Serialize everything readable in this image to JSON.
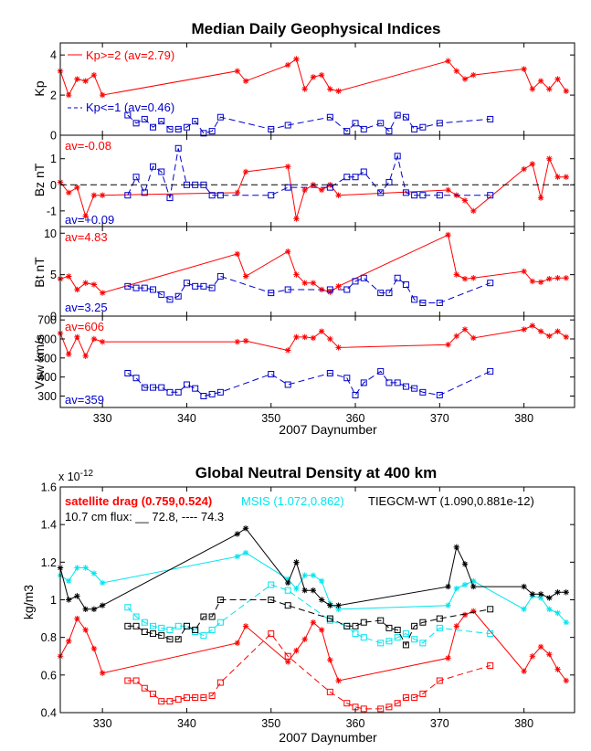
{
  "colors": {
    "red": "#ff0000",
    "blue": "#0000cc",
    "cyan": "#00e5ee",
    "black": "#000000"
  },
  "chart_data": [
    {
      "type": "line",
      "title": "Median Daily Geophysical Indices",
      "xlabel": "2007 Daynumber",
      "xlim": [
        325,
        386
      ],
      "x_ticks": [
        "330",
        "340",
        "350",
        "360",
        "370",
        "380"
      ],
      "panels": [
        {
          "ylabel": "Kp",
          "ylim": [
            0,
            4.6
          ],
          "y_ticks": [
            "0",
            "2",
            "4"
          ],
          "series": [
            {
              "name": "Kp>=2 (av=2.79)",
              "legend": "Kp>=2 (av=2.79)",
              "color": "#ff0000",
              "marker": "star",
              "style": "solid",
              "x": [
                325,
                326,
                327,
                328,
                329,
                330,
                346,
                347,
                352,
                353,
                354,
                355,
                356,
                357,
                358,
                371,
                372,
                373,
                374,
                380,
                381,
                382,
                383,
                384,
                385
              ],
              "y": [
                3.2,
                2.0,
                2.8,
                2.7,
                3.0,
                2.0,
                3.2,
                2.7,
                3.5,
                3.8,
                2.3,
                2.9,
                3.0,
                2.3,
                2.2,
                3.7,
                3.2,
                2.8,
                3.0,
                3.3,
                2.3,
                2.7,
                2.3,
                2.8,
                2.2
              ]
            },
            {
              "name": "Kp<=1 (av=0.46)",
              "legend": "Kp<=1 (av=0.46)",
              "color": "#0000cc",
              "marker": "square",
              "style": "dashed",
              "x": [
                333,
                334,
                335,
                336,
                337,
                338,
                339,
                340,
                341,
                342,
                343,
                344,
                350,
                352,
                357,
                359,
                360,
                361,
                363,
                364,
                365,
                366,
                367,
                368,
                370,
                376
              ],
              "y": [
                1.0,
                0.6,
                0.8,
                0.4,
                0.7,
                0.3,
                0.3,
                0.4,
                0.7,
                0.1,
                0.2,
                0.9,
                0.3,
                0.5,
                0.9,
                0.2,
                0.6,
                0.3,
                0.6,
                0.2,
                1.0,
                0.9,
                0.3,
                0.4,
                0.6,
                0.8
              ]
            }
          ]
        },
        {
          "ylabel": "Bz nT",
          "ylim": [
            -1.6,
            1.9
          ],
          "y_ticks": [
            "-1",
            "0",
            "1"
          ],
          "zero_line": true,
          "annotations": [
            "av=-0.08",
            "av=+0.09"
          ],
          "series": [
            {
              "name": "Kp>=2",
              "color": "#ff0000",
              "marker": "star",
              "style": "solid",
              "x": [
                325,
                326,
                327,
                328,
                329,
                330,
                346,
                347,
                352,
                353,
                354,
                355,
                356,
                357,
                358,
                371,
                372,
                373,
                374,
                380,
                381,
                382,
                383,
                384,
                385
              ],
              "y": [
                0.1,
                -0.3,
                -0.1,
                -1.2,
                -0.4,
                -0.4,
                -0.3,
                0.5,
                0.7,
                -1.3,
                -0.2,
                0.0,
                -0.2,
                0.0,
                -0.4,
                -0.2,
                -0.4,
                -0.6,
                -1.0,
                0.6,
                0.8,
                -0.5,
                1.0,
                0.3,
                0.3
              ]
            },
            {
              "name": "Kp<=1",
              "color": "#0000cc",
              "marker": "square",
              "style": "dashed",
              "x": [
                333,
                334,
                335,
                336,
                337,
                338,
                339,
                340,
                341,
                342,
                343,
                344,
                350,
                352,
                357,
                359,
                360,
                361,
                363,
                364,
                365,
                366,
                367,
                368,
                370,
                376
              ],
              "y": [
                -0.4,
                0.3,
                -0.3,
                0.7,
                0.5,
                -0.5,
                1.4,
                0.0,
                0.0,
                0.0,
                -0.4,
                -0.4,
                -0.4,
                -0.1,
                -0.1,
                0.3,
                0.3,
                0.5,
                -0.3,
                0.1,
                1.1,
                -0.3,
                -0.4,
                -0.4,
                -0.4,
                -0.4
              ]
            }
          ]
        },
        {
          "ylabel": "Bt nT",
          "ylim": [
            0,
            10.8
          ],
          "y_ticks": [
            "0",
            "5",
            "10"
          ],
          "annotations": [
            "av=4.83",
            "av=3.25"
          ],
          "series": [
            {
              "name": "Kp>=2",
              "color": "#ff0000",
              "marker": "star",
              "style": "solid",
              "x": [
                325,
                326,
                327,
                328,
                329,
                330,
                346,
                347,
                352,
                353,
                354,
                355,
                356,
                357,
                358,
                371,
                372,
                373,
                374,
                380,
                381,
                382,
                383,
                384,
                385
              ],
              "y": [
                4.5,
                4.8,
                3.2,
                4.0,
                3.8,
                2.8,
                7.5,
                4.8,
                7.8,
                5.0,
                4.0,
                4.0,
                3.2,
                2.9,
                3.6,
                9.8,
                5.0,
                4.5,
                4.6,
                5.4,
                4.2,
                4.1,
                4.5,
                4.6,
                4.6
              ]
            },
            {
              "name": "Kp<=1",
              "color": "#0000cc",
              "marker": "square",
              "style": "dashed",
              "x": [
                333,
                334,
                335,
                336,
                337,
                338,
                339,
                340,
                341,
                342,
                343,
                344,
                350,
                352,
                357,
                359,
                360,
                361,
                363,
                364,
                365,
                366,
                367,
                368,
                370,
                376
              ],
              "y": [
                3.6,
                3.4,
                3.4,
                3.2,
                2.6,
                2.0,
                2.4,
                4.0,
                3.6,
                3.6,
                3.4,
                4.8,
                2.8,
                3.2,
                3.2,
                3.2,
                4.2,
                4.6,
                2.8,
                2.8,
                4.6,
                3.8,
                2.0,
                1.6,
                1.6,
                4.0
              ]
            }
          ]
        },
        {
          "ylabel": "Vsw km/s",
          "ylim": [
            240,
            720
          ],
          "y_ticks": [
            "300",
            "400",
            "500",
            "600",
            "700"
          ],
          "annotations": [
            "av=606",
            "av=359"
          ],
          "series": [
            {
              "name": "Kp>=2",
              "color": "#ff0000",
              "marker": "star",
              "style": "solid",
              "x": [
                325,
                326,
                327,
                328,
                329,
                330,
                346,
                347,
                352,
                353,
                354,
                355,
                356,
                357,
                358,
                371,
                372,
                373,
                374,
                380,
                381,
                382,
                383,
                384,
                385
              ],
              "y": [
                630,
                520,
                610,
                510,
                600,
                585,
                585,
                590,
                540,
                610,
                610,
                605,
                640,
                600,
                555,
                570,
                615,
                650,
                605,
                650,
                670,
                640,
                615,
                640,
                610
              ]
            },
            {
              "name": "Kp<=1",
              "color": "#0000cc",
              "marker": "square",
              "style": "dashed",
              "x": [
                333,
                334,
                335,
                336,
                337,
                338,
                339,
                340,
                341,
                342,
                343,
                344,
                350,
                352,
                357,
                359,
                360,
                361,
                363,
                364,
                365,
                366,
                367,
                368,
                370,
                376
              ],
              "y": [
                420,
                395,
                345,
                345,
                345,
                320,
                320,
                360,
                340,
                300,
                310,
                320,
                415,
                360,
                420,
                395,
                305,
                370,
                430,
                370,
                370,
                350,
                340,
                320,
                305,
                430
              ]
            }
          ]
        }
      ]
    },
    {
      "type": "line",
      "title": "Global Neutral Density at 400 km",
      "xlabel": "2007 Daynumber",
      "ylabel": "kg/m3",
      "exponent": "x 10",
      "exponent_power": "-12",
      "xlim": [
        325,
        386
      ],
      "ylim": [
        0.4,
        1.6
      ],
      "x_ticks": [
        "330",
        "340",
        "350",
        "360",
        "370",
        "380"
      ],
      "y_ticks": [
        "0.4",
        "0.6",
        "0.8",
        "1",
        "1.2",
        "1.4",
        "1.6"
      ],
      "legend": {
        "satellite": "satellite drag (0.759,0.524)",
        "msis": "MSIS (1.072,0.862)",
        "tiegcm": "TIEGCM-WT (1.090,0.881e-12)",
        "flux": "10.7 cm flux: __ 72.8, ---- 74.3"
      },
      "series": [
        {
          "name": "satellite drag",
          "color": "#ff0000",
          "marker": "star",
          "style": "solid",
          "x": [
            325,
            326,
            327,
            328,
            329,
            330,
            346,
            347,
            352,
            353,
            354,
            355,
            356,
            357,
            358,
            371,
            372,
            373,
            374,
            380,
            381,
            382,
            383,
            384,
            385
          ],
          "y": [
            0.7,
            0.78,
            0.9,
            0.84,
            0.74,
            0.61,
            0.77,
            0.86,
            0.67,
            0.73,
            0.79,
            0.88,
            0.84,
            0.68,
            0.57,
            0.69,
            0.86,
            0.92,
            0.94,
            0.62,
            0.7,
            0.75,
            0.71,
            0.63,
            0.57
          ]
        },
        {
          "name": "satellite drag",
          "color": "#ff0000",
          "marker": "square",
          "style": "dashed",
          "x": [
            333,
            334,
            335,
            336,
            337,
            338,
            339,
            340,
            341,
            342,
            343,
            344,
            350,
            352,
            357,
            359,
            360,
            361,
            363,
            364,
            365,
            366,
            367,
            368,
            370,
            376
          ],
          "y": [
            0.57,
            0.57,
            0.53,
            0.5,
            0.46,
            0.46,
            0.47,
            0.48,
            0.48,
            0.48,
            0.49,
            0.56,
            0.82,
            0.7,
            0.51,
            0.45,
            0.43,
            0.42,
            0.42,
            0.43,
            0.45,
            0.48,
            0.48,
            0.5,
            0.57,
            0.65
          ]
        },
        {
          "name": "MSIS",
          "color": "#00e5ee",
          "marker": "star",
          "style": "solid",
          "x": [
            325,
            326,
            327,
            328,
            329,
            330,
            346,
            347,
            352,
            353,
            354,
            355,
            356,
            357,
            358,
            371,
            372,
            373,
            374,
            380,
            381,
            382,
            383,
            384,
            385
          ],
          "y": [
            1.13,
            1.1,
            1.17,
            1.17,
            1.14,
            1.09,
            1.23,
            1.25,
            1.11,
            1.06,
            1.13,
            1.13,
            1.1,
            0.98,
            0.95,
            0.97,
            1.06,
            1.08,
            1.1,
            0.95,
            1.02,
            1.01,
            0.95,
            0.93,
            0.88
          ]
        },
        {
          "name": "MSIS",
          "color": "#00e5ee",
          "marker": "square",
          "style": "dashed",
          "x": [
            333,
            334,
            335,
            336,
            337,
            338,
            339,
            340,
            341,
            342,
            343,
            344,
            350,
            352,
            357,
            359,
            360,
            361,
            363,
            364,
            365,
            366,
            367,
            368,
            370,
            376
          ],
          "y": [
            0.96,
            0.91,
            0.88,
            0.86,
            0.85,
            0.84,
            0.86,
            0.86,
            0.83,
            0.81,
            0.84,
            0.88,
            1.08,
            1.05,
            0.89,
            0.86,
            0.82,
            0.8,
            0.77,
            0.78,
            0.8,
            0.82,
            0.79,
            0.77,
            0.85,
            0.82
          ]
        },
        {
          "name": "TIEGCM-WT",
          "color": "#000000",
          "marker": "star",
          "style": "solid",
          "x": [
            325,
            326,
            327,
            328,
            329,
            330,
            346,
            347,
            352,
            353,
            354,
            355,
            356,
            357,
            358,
            371,
            372,
            373,
            374,
            380,
            381,
            382,
            383,
            384,
            385
          ],
          "y": [
            1.17,
            1.0,
            1.02,
            0.95,
            0.95,
            0.97,
            1.35,
            1.38,
            1.09,
            1.2,
            1.05,
            1.05,
            1.0,
            0.97,
            0.97,
            1.07,
            1.28,
            1.19,
            1.07,
            1.07,
            1.03,
            1.03,
            1.01,
            1.04,
            1.04
          ]
        },
        {
          "name": "TIEGCM-WT",
          "color": "#000000",
          "marker": "square",
          "style": "dashed",
          "x": [
            333,
            334,
            335,
            336,
            337,
            338,
            339,
            340,
            341,
            342,
            343,
            344,
            350,
            352,
            357,
            359,
            360,
            361,
            363,
            364,
            365,
            366,
            367,
            368,
            370,
            376
          ],
          "y": [
            0.86,
            0.86,
            0.83,
            0.82,
            0.81,
            0.79,
            0.79,
            0.86,
            0.84,
            0.91,
            0.91,
            1.0,
            1.0,
            0.97,
            0.9,
            0.86,
            0.86,
            0.88,
            0.89,
            0.85,
            0.84,
            0.76,
            0.86,
            0.88,
            0.9,
            0.95
          ]
        }
      ]
    }
  ]
}
